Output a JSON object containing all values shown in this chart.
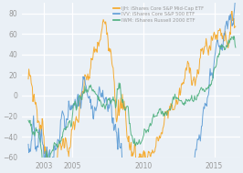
{
  "legend_entries": [
    "IJH: iShares Core S&P Mid-Cap ETF",
    "IVV: iShares Core S&P 500 ETF",
    "IWM: iShares Russell 2000 ETF"
  ],
  "colors": [
    "#f5a623",
    "#5b9bd5",
    "#4caf7d"
  ],
  "background_color": "#eaf0f6",
  "plot_bg_color": "#eaf0f6",
  "ylim": [
    -60,
    90
  ],
  "yticks": [
    -60,
    -40,
    -20,
    0,
    20,
    40,
    60,
    80
  ],
  "xticks": [
    2003,
    2005,
    2010,
    2015
  ],
  "xmin": 2001.5,
  "xmax": 2016.8,
  "grid_color": "#ffffff",
  "text_color": "#999999",
  "tick_fontsize": 5.5,
  "legend_fontsize": 3.8
}
